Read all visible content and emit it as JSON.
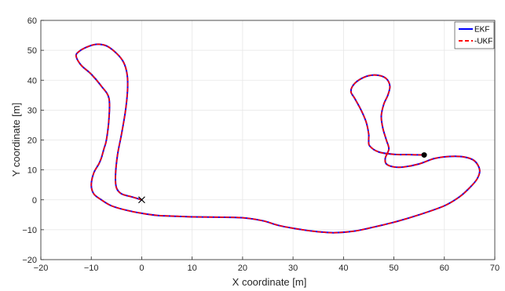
{
  "chart_data": {
    "type": "line",
    "xlabel": "X coordinate [m]",
    "ylabel": "Y coordinate [m]",
    "xlim": [
      -20,
      70
    ],
    "ylim": [
      -20,
      60
    ],
    "xticks": [
      -20,
      -10,
      0,
      10,
      20,
      30,
      40,
      50,
      60,
      70
    ],
    "yticks": [
      -20,
      -10,
      0,
      10,
      20,
      30,
      40,
      50,
      60
    ],
    "grid": true,
    "legend_position": "top-right",
    "series": [
      {
        "name": "EKF",
        "color": "#0000ff",
        "style": "solid",
        "x": [
          0,
          -2,
          -4,
          -5,
          -5.2,
          -4.8,
          -4,
          -3.2,
          -2.8,
          -2.9,
          -3.6,
          -5,
          -7,
          -9,
          -11,
          -12.5,
          -13,
          -12,
          -10,
          -8,
          -6.5,
          -6.5,
          -7,
          -7.5,
          -8,
          -8.5,
          -9.5,
          -10,
          -9.5,
          -8,
          -6,
          -3,
          0,
          3,
          7,
          10,
          15,
          20,
          24,
          27,
          30,
          34,
          38,
          42,
          45,
          50,
          55,
          60,
          63,
          65,
          66.5,
          67,
          66,
          64,
          61,
          58,
          55,
          52,
          50,
          48.5,
          48.3,
          49,
          48.5,
          47.8,
          47.5,
          48,
          48.8,
          49.2,
          48.5,
          47,
          45,
          43,
          41.8,
          41.5,
          42.2,
          43.5,
          44.5,
          45,
          45,
          45.2,
          47,
          50,
          53,
          56
        ],
        "y": [
          0,
          1,
          2,
          4,
          8,
          15,
          22,
          30,
          37,
          42,
          46,
          49,
          51.5,
          52,
          51,
          49.5,
          48,
          45,
          42,
          38,
          34,
          27,
          20,
          17,
          14,
          12,
          9,
          5,
          2,
          0,
          -2,
          -3.5,
          -4.5,
          -5.2,
          -5.5,
          -5.7,
          -5.8,
          -6,
          -7,
          -8.5,
          -9.5,
          -10.5,
          -11,
          -10.5,
          -9.5,
          -7.5,
          -5,
          -2,
          1,
          4,
          7,
          10,
          13,
          14.3,
          14.5,
          13.8,
          12,
          11,
          11,
          12,
          14,
          17,
          20,
          24,
          28,
          32,
          35,
          38,
          40.5,
          41.6,
          41.5,
          40,
          38,
          36,
          34,
          30,
          26,
          22,
          20,
          18,
          16,
          15.2,
          15.1,
          15
        ]
      },
      {
        "name": "-UKF",
        "color": "#ff0000",
        "style": "dashed",
        "x": [
          0,
          -2,
          -4,
          -5,
          -5.2,
          -4.8,
          -4,
          -3.2,
          -2.8,
          -2.9,
          -3.6,
          -5,
          -7,
          -9,
          -11,
          -12.5,
          -13,
          -12,
          -10,
          -8,
          -6.5,
          -6.5,
          -7,
          -7.5,
          -8,
          -8.5,
          -9.5,
          -10,
          -9.5,
          -8,
          -6,
          -3,
          0,
          3,
          7,
          10,
          15,
          20,
          24,
          27,
          30,
          34,
          38,
          42,
          45,
          50,
          55,
          60,
          63,
          65,
          66.5,
          67,
          66,
          64,
          61,
          58,
          55,
          52,
          50,
          48.5,
          48.3,
          49,
          48.5,
          47.8,
          47.5,
          48,
          48.8,
          49.2,
          48.5,
          47,
          45,
          43,
          41.8,
          41.5,
          42.2,
          43.5,
          44.5,
          45,
          45,
          45.2,
          47,
          50,
          53,
          56
        ],
        "y": [
          0,
          1,
          2,
          4,
          8,
          15,
          22,
          30,
          37,
          42,
          46,
          49,
          51.5,
          52,
          51,
          49.5,
          48,
          45,
          42,
          38,
          34,
          27,
          20,
          17,
          14,
          12,
          9,
          5,
          2,
          0,
          -2,
          -3.5,
          -4.5,
          -5.2,
          -5.5,
          -5.7,
          -5.8,
          -6,
          -7,
          -8.5,
          -9.5,
          -10.5,
          -11,
          -10.5,
          -9.5,
          -7.5,
          -5,
          -2,
          1,
          4,
          7,
          10,
          13,
          14.3,
          14.5,
          13.8,
          12,
          11,
          11,
          12,
          14,
          17,
          20,
          24,
          28,
          32,
          35,
          38,
          40.5,
          41.6,
          41.5,
          40,
          38,
          36,
          34,
          30,
          26,
          22,
          20,
          18,
          16,
          15.2,
          15.1,
          15
        ]
      }
    ],
    "markers": [
      {
        "type": "x-mark",
        "x": 0,
        "y": 0
      },
      {
        "type": "dot",
        "x": 56,
        "y": 15
      }
    ]
  }
}
